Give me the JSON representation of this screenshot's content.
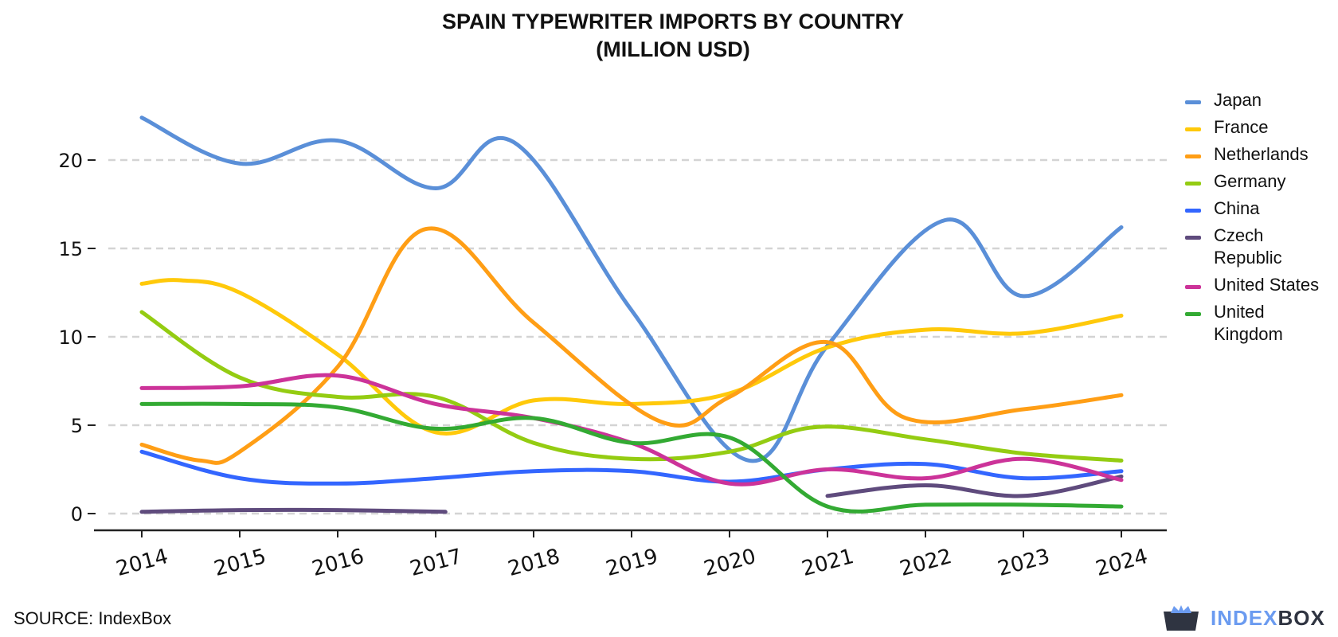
{
  "title": {
    "line1": "SPAIN TYPEWRITER IMPORTS BY COUNTRY",
    "line2": "(MILLION USD)"
  },
  "source": "SOURCE: IndexBox",
  "brand": {
    "part1": "INDEX",
    "part2": "BOX",
    "icon": "indexbox-logo-icon"
  },
  "chart_data": {
    "type": "line",
    "title": "SPAIN TYPEWRITER IMPORTS BY COUNTRY (MILLION USD)",
    "x": [
      2014,
      2015,
      2016,
      2017,
      2018,
      2019,
      2020,
      2021,
      2022,
      2023,
      2024
    ],
    "y_ticks": [
      0,
      5,
      10,
      15,
      20
    ],
    "ylim": [
      -1,
      23.5
    ],
    "grid": true,
    "legend_position": "right",
    "series": [
      {
        "name": "Japan",
        "color": "#5a8fd8",
        "x": [
          2014,
          2015,
          2016,
          2017,
          2017.8,
          2019,
          2020.2,
          2021,
          2022.2,
          2023,
          2024
        ],
        "values": [
          22.4,
          19.8,
          21.1,
          18.4,
          21.0,
          11.5,
          3.0,
          9.5,
          16.6,
          12.3,
          16.2
        ]
      },
      {
        "name": "France",
        "color": "#ffc90a",
        "x": [
          2014,
          2014.4,
          2015,
          2016,
          2017,
          2018,
          2019,
          2020,
          2021,
          2022,
          2023,
          2024
        ],
        "values": [
          13.0,
          13.2,
          12.5,
          9.0,
          4.6,
          6.4,
          6.2,
          6.8,
          9.4,
          10.4,
          10.2,
          11.2
        ]
      },
      {
        "name": "Netherlands",
        "color": "#ff9e15",
        "x": [
          2014,
          2014.6,
          2015,
          2016,
          2016.9,
          2018,
          2019.3,
          2020,
          2021,
          2021.8,
          2023,
          2024
        ],
        "values": [
          3.9,
          3.0,
          3.5,
          8.3,
          16.1,
          10.8,
          5.2,
          6.6,
          9.7,
          5.4,
          5.9,
          6.7
        ]
      },
      {
        "name": "Germany",
        "color": "#94cc12",
        "x": [
          2014,
          2015,
          2016,
          2017,
          2018,
          2019,
          2020,
          2020.9,
          2022,
          2023,
          2024
        ],
        "values": [
          11.4,
          7.7,
          6.6,
          6.6,
          4.0,
          3.1,
          3.5,
          4.9,
          4.2,
          3.4,
          3.0
        ]
      },
      {
        "name": "China",
        "color": "#3366ff",
        "x": [
          2014,
          2015,
          2016,
          2017,
          2018,
          2019,
          2020,
          2021,
          2022,
          2023,
          2024
        ],
        "values": [
          3.5,
          2.0,
          1.7,
          2.0,
          2.4,
          2.4,
          1.8,
          2.5,
          2.8,
          2.0,
          2.4
        ]
      },
      {
        "name": "Czech Republic",
        "color": "#5f4b7d",
        "x": [
          2014,
          2015,
          2016,
          2017.1,
          null,
          2021,
          2022,
          2023,
          2024
        ],
        "values": [
          0.1,
          0.2,
          0.2,
          0.1,
          null,
          1.0,
          1.6,
          1.0,
          2.1
        ]
      },
      {
        "name": "United States",
        "color": "#cc3399",
        "x": [
          2014,
          2015,
          2016,
          2017,
          2018,
          2019,
          2020,
          2021,
          2022,
          2023,
          2024
        ],
        "values": [
          7.1,
          7.2,
          7.8,
          6.2,
          5.4,
          4.0,
          1.7,
          2.5,
          2.0,
          3.1,
          1.9
        ]
      },
      {
        "name": "United Kingdom",
        "color": "#33aa33",
        "x": [
          2014,
          2015,
          2016,
          2017,
          2018,
          2019,
          2020,
          2021,
          2022,
          2023,
          2024
        ],
        "values": [
          6.2,
          6.2,
          6.0,
          4.8,
          5.4,
          4.0,
          4.3,
          0.4,
          0.5,
          0.5,
          0.4
        ]
      }
    ]
  }
}
